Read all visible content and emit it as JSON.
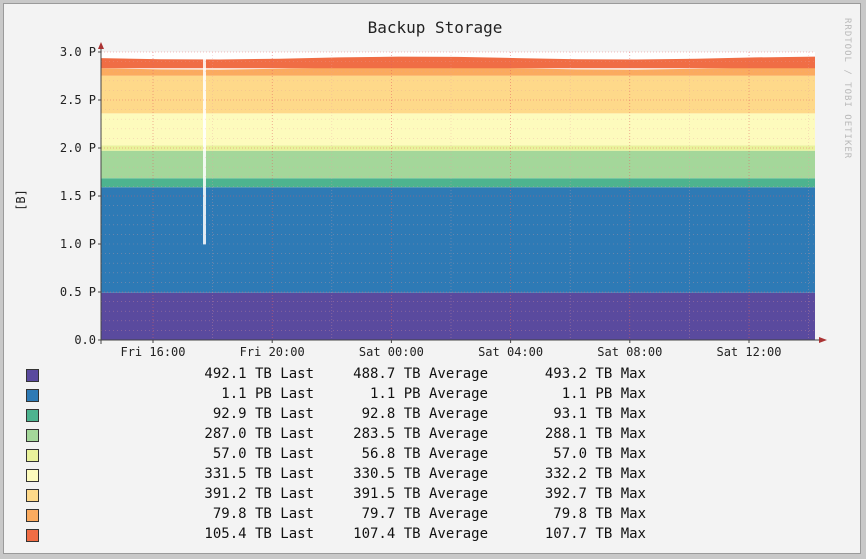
{
  "chart_data": {
    "type": "area",
    "stacked": true,
    "title": "Backup Storage",
    "ylabel": "[B]",
    "watermark": "RRDTOOL / TOBI OETIKER",
    "ylim": [
      0,
      3.0
    ],
    "y_unit": "PB",
    "yticks": [
      "0.0",
      "0.5 P",
      "1.0 P",
      "1.5 P",
      "2.0 P",
      "2.5 P",
      "3.0 P"
    ],
    "xticks": [
      "Fri 16:00",
      "Fri 20:00",
      "Sat 00:00",
      "Sat 04:00",
      "Sat 08:00",
      "Sat 12:00"
    ],
    "grid": true,
    "series": [
      {
        "color": "#5a4a9e",
        "value_pb": 0.492,
        "last": "492.1 TB Last",
        "average": "488.7 TB Average",
        "max": "493.2 TB Max"
      },
      {
        "color": "#2e7ab5",
        "value_pb": 1.1,
        "last": "1.1 PB Last",
        "average": "1.1 PB Average",
        "max": "1.1 PB Max"
      },
      {
        "color": "#4db38f",
        "value_pb": 0.093,
        "last": "92.9 TB Last",
        "average": "92.8 TB Average",
        "max": "93.1 TB Max"
      },
      {
        "color": "#a4d79a",
        "value_pb": 0.287,
        "last": "287.0 TB Last",
        "average": "283.5 TB Average",
        "max": "288.1 TB Max"
      },
      {
        "color": "#e9f29b",
        "value_pb": 0.057,
        "last": "57.0 TB Last",
        "average": "56.8 TB Average",
        "max": "57.0 TB Max"
      },
      {
        "color": "#fdfbbd",
        "value_pb": 0.3315,
        "last": "331.5 TB Last",
        "average": "330.5 TB Average",
        "max": "332.2 TB Max"
      },
      {
        "color": "#fed98a",
        "value_pb": 0.3912,
        "last": "391.2 TB Last",
        "average": "391.5 TB Average",
        "max": "392.7 TB Max"
      },
      {
        "color": "#fbab5f",
        "value_pb": 0.0798,
        "last": "79.8 TB Last",
        "average": "79.7 TB Average",
        "max": "79.8 TB Max"
      },
      {
        "color": "#f06d45",
        "value_pb": 0.1054,
        "last": "105.4 TB Last",
        "average": "107.4 TB Average",
        "max": "107.7 TB Max"
      }
    ]
  }
}
